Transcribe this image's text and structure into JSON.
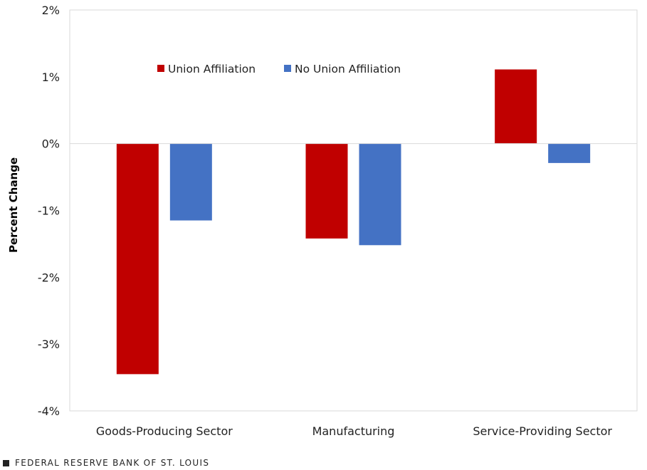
{
  "chart_data": {
    "type": "bar",
    "title": "",
    "xlabel": "",
    "ylabel": "Percent Change",
    "ylim": [
      -4,
      2
    ],
    "yticks": [
      2,
      1,
      0,
      -1,
      -2,
      -3,
      -4
    ],
    "ytick_labels": [
      "2%",
      "1%",
      "0%",
      "-1%",
      "-2%",
      "-3%",
      "-4%"
    ],
    "categories": [
      "Goods-Producing Sector",
      "Manufacturing",
      "Service-Providing Sector"
    ],
    "series": [
      {
        "name": "Union Affiliation",
        "color": "#C00000",
        "values": [
          -3.45,
          -1.42,
          1.11
        ]
      },
      {
        "name": "No Union Affiliation",
        "color": "#4472C4",
        "values": [
          -1.15,
          -1.52,
          -0.29
        ]
      }
    ],
    "grid": "zero line and plot frame only",
    "legend": "top-left inside plot"
  },
  "footer": {
    "source": "FEDERAL RESERVE BANK OF ST. LOUIS"
  }
}
